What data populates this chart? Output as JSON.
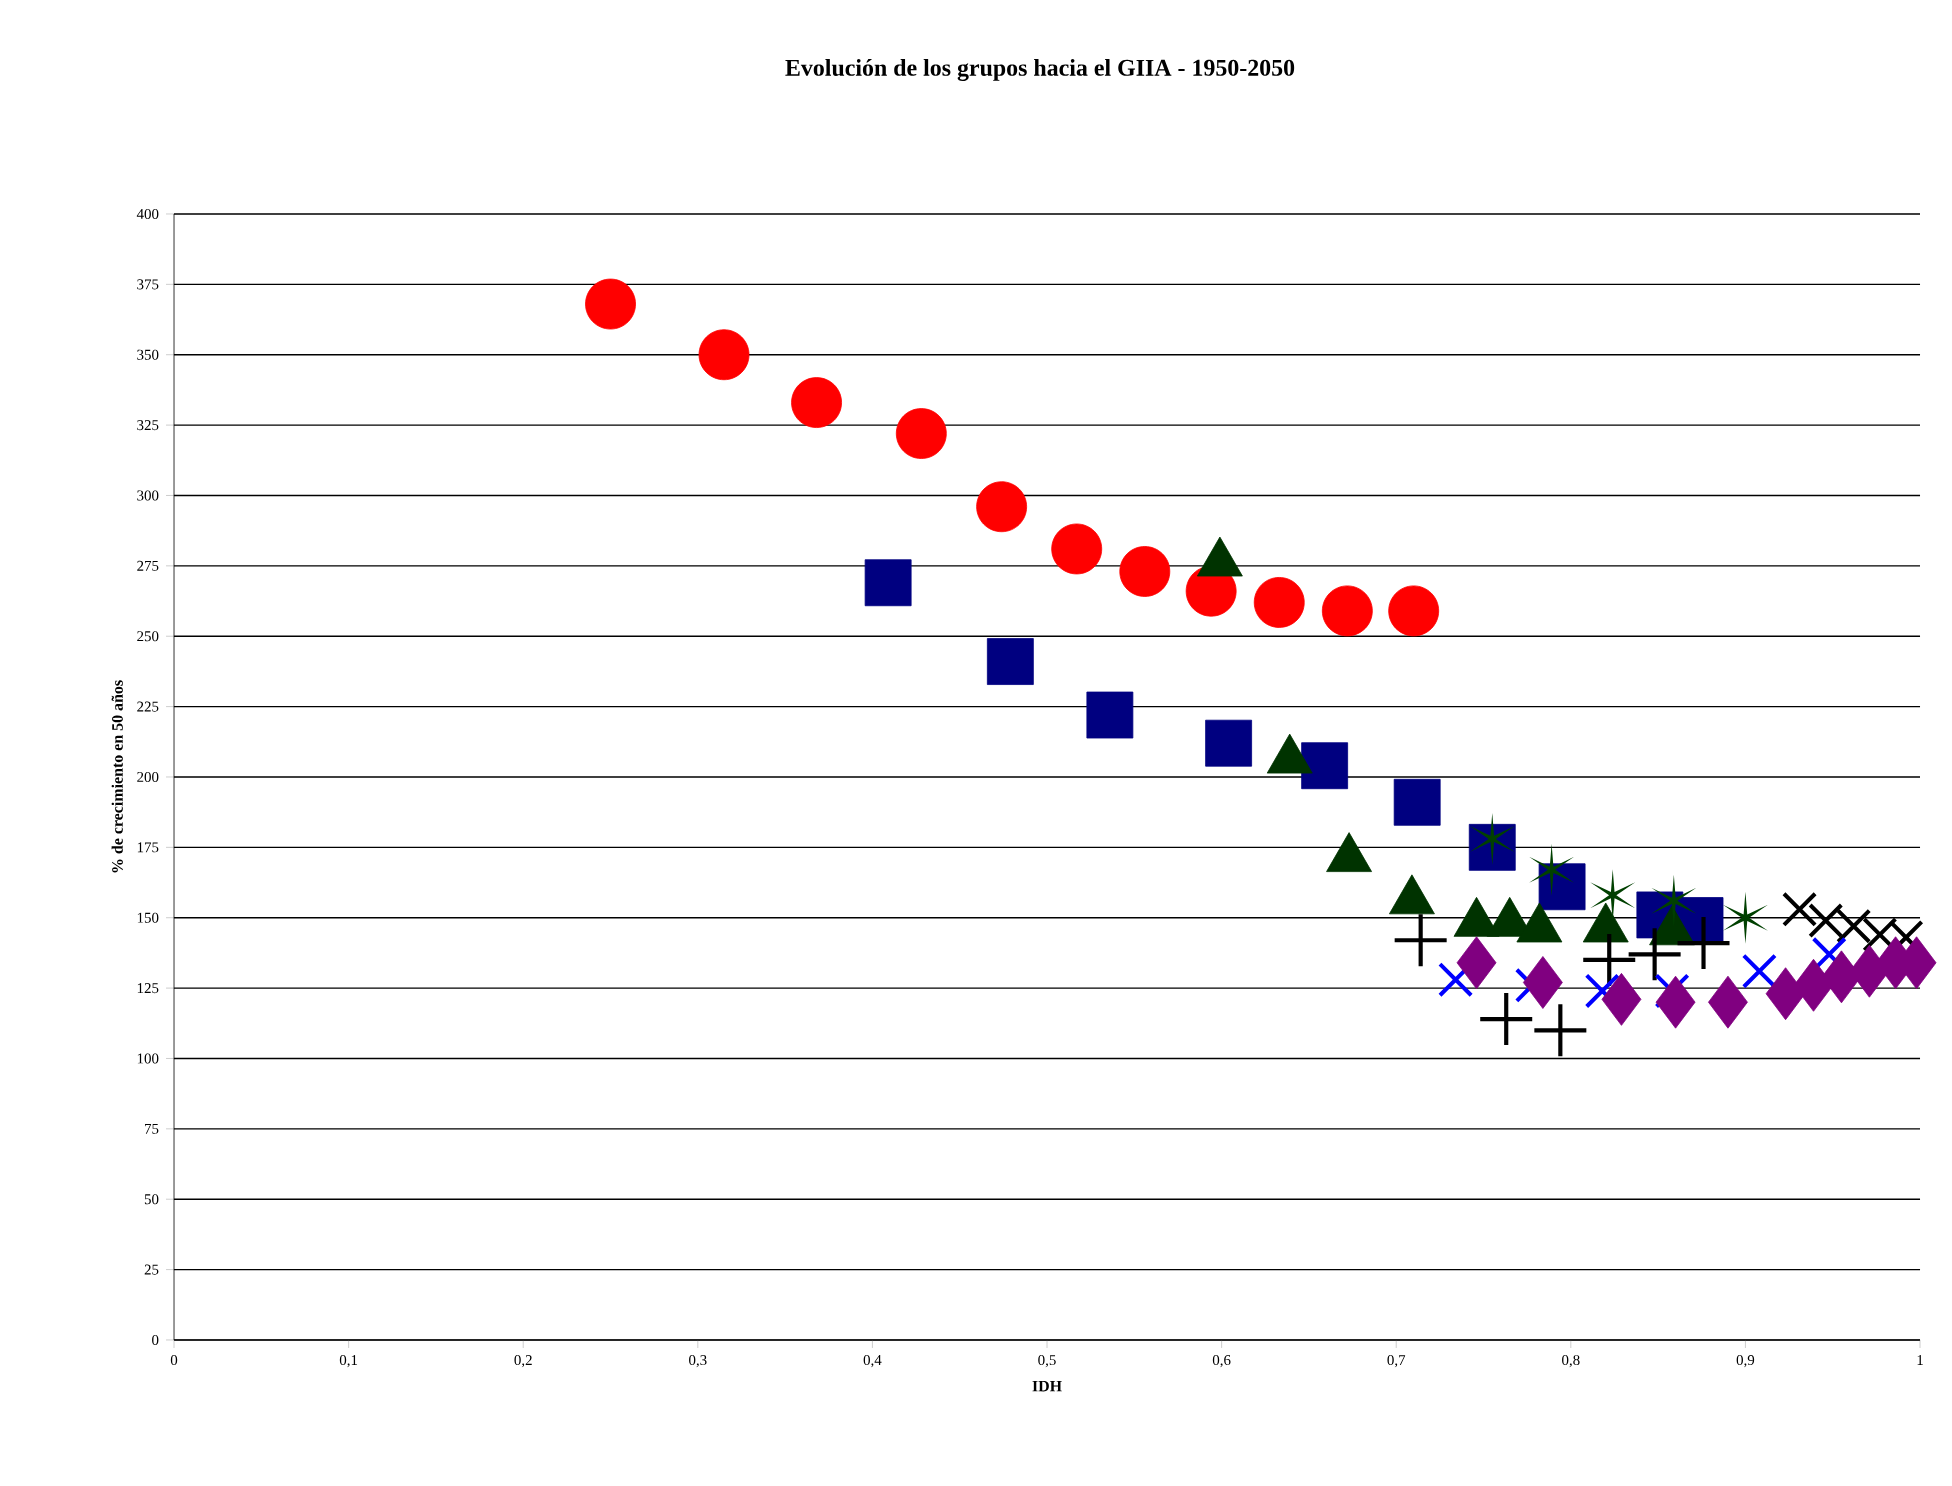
{
  "chart_data": {
    "type": "scatter",
    "title": "Evolución de los grupos hacia el GIIA - 1950-2050",
    "xlabel": "IDH",
    "ylabel": "% de crecimiento en 50 años",
    "xlim": [
      0,
      1
    ],
    "ylim": [
      0,
      400
    ],
    "xticks": [
      0,
      {
        "value": 0.1,
        "label": "0,1"
      },
      {
        "value": 0.2,
        "label": "0,2"
      },
      {
        "value": 0.3,
        "label": "0,3"
      },
      {
        "value": 0.4,
        "label": "0,4"
      },
      {
        "value": 0.5,
        "label": "0,5"
      },
      {
        "value": 0.6,
        "label": "0,6"
      },
      {
        "value": 0.7,
        "label": "0,7"
      },
      {
        "value": 0.8,
        "label": "0,8"
      },
      {
        "value": 0.9,
        "label": "0,9"
      },
      1
    ],
    "yticks": [
      0,
      25,
      50,
      75,
      100,
      125,
      150,
      175,
      200,
      225,
      250,
      275,
      300,
      325,
      350,
      375,
      400
    ],
    "grid": "y",
    "series": [
      {
        "color": "#ff0000",
        "marker": "circle",
        "x": [
          0.25,
          0.315,
          0.368,
          0.428,
          0.474,
          0.517,
          0.556,
          0.594,
          0.633,
          0.672,
          0.71
        ],
        "values": [
          368,
          350,
          333,
          322,
          296,
          281,
          273,
          266,
          262,
          259,
          259
        ]
      },
      {
        "color": "#000080",
        "marker": "square",
        "x": [
          0.409,
          0.479,
          0.536,
          0.604,
          0.659,
          0.712,
          0.755,
          0.795,
          0.851,
          0.874
        ],
        "values": [
          269,
          241,
          222,
          212,
          204,
          191,
          175,
          161,
          151,
          149
        ]
      },
      {
        "color": "#003300",
        "marker": "triangle",
        "x": [
          0.599,
          0.639,
          0.673,
          0.709,
          0.746,
          0.765,
          0.782,
          0.82,
          0.858
        ],
        "values": [
          276,
          206,
          171,
          156,
          148,
          148,
          146,
          146,
          145
        ]
      },
      {
        "color": "#004000",
        "x": [
          0.755,
          0.789,
          0.824,
          0.859,
          0.9
        ],
        "values": [
          178,
          167,
          158,
          156,
          150
        ]
      },
      {
        "color": "#000000",
        "marker": "plus",
        "x": [
          0.714,
          0.763,
          0.794,
          0.822,
          0.848,
          0.876
        ],
        "values": [
          142,
          114,
          110,
          135,
          137,
          141
        ]
      },
      {
        "color": "#000000",
        "marker": "cross",
        "x": [
          0.931,
          0.946,
          0.962,
          0.977,
          0.992
        ],
        "values": [
          153,
          149,
          147,
          144,
          143
        ]
      },
      {
        "color": "#0000ff",
        "marker": "cross",
        "x": [
          0.734,
          0.778,
          0.818,
          0.858,
          0.908,
          0.948
        ],
        "values": [
          128,
          126,
          124,
          124,
          131,
          137
        ]
      },
      {
        "color": "#800080",
        "marker": "diamond",
        "x": [
          0.746,
          0.784,
          0.829,
          0.86,
          0.89,
          0.923,
          0.939,
          0.955,
          0.971,
          0.986,
          0.998
        ],
        "values": [
          134,
          127,
          121,
          120,
          120,
          123,
          126,
          129,
          131,
          134,
          134
        ]
      }
    ]
  }
}
